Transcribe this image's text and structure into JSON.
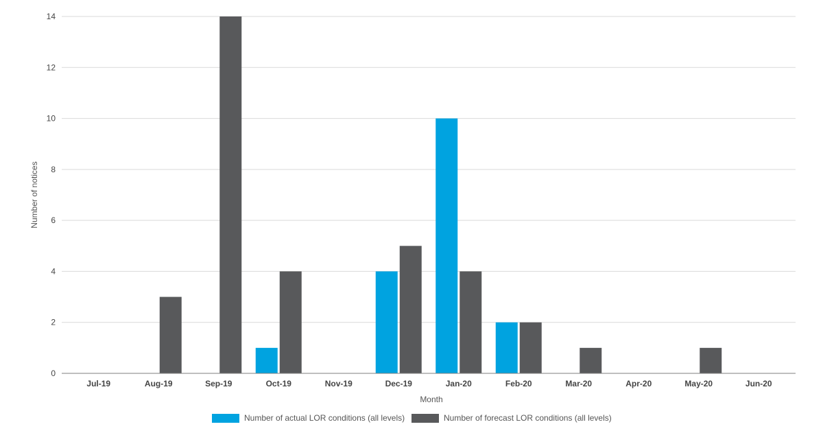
{
  "chart_data": {
    "type": "bar",
    "title": "",
    "xlabel": "Month",
    "ylabel": "Number of notices",
    "ylim": [
      0,
      14
    ],
    "yticks": [
      0,
      2,
      4,
      6,
      8,
      10,
      12,
      14
    ],
    "grid": true,
    "legend_position": "bottom",
    "categories": [
      "Jul-19",
      "Aug-19",
      "Sep-19",
      "Oct-19",
      "Nov-19",
      "Dec-19",
      "Jan-20",
      "Feb-20",
      "Mar-20",
      "Apr-20",
      "May-20",
      "Jun-20"
    ],
    "series": [
      {
        "name": "Number of actual LOR conditions (all levels)",
        "color": "#00a3e0",
        "values": [
          0,
          0,
          0,
          1,
          0,
          4,
          10,
          2,
          0,
          0,
          0,
          0
        ]
      },
      {
        "name": "Number of forecast LOR conditions (all levels)",
        "color": "#58595b",
        "values": [
          0,
          3,
          14,
          4,
          0,
          5,
          4,
          2,
          1,
          0,
          1,
          0
        ]
      }
    ],
    "colors": {
      "grid": "#d9d9d9",
      "axis": "#7f7f7f"
    }
  }
}
